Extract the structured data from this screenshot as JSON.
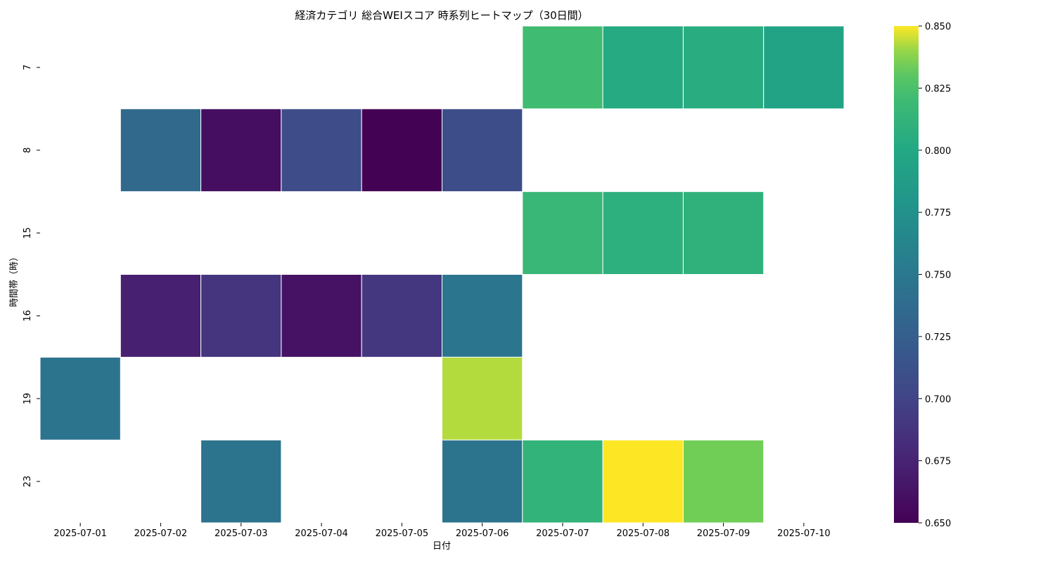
{
  "chart_data": {
    "type": "heatmap",
    "title": "経済カテゴリ 総合WEIスコア 時系列ヒートマップ（30日間）",
    "xlabel": "日付",
    "ylabel": "時間帯（時）",
    "x": [
      "2025-07-01",
      "2025-07-02",
      "2025-07-03",
      "2025-07-04",
      "2025-07-05",
      "2025-07-06",
      "2025-07-07",
      "2025-07-08",
      "2025-07-09",
      "2025-07-10"
    ],
    "y": [
      "7",
      "8",
      "15",
      "16",
      "19",
      "23"
    ],
    "values": [
      [
        null,
        null,
        null,
        null,
        null,
        null,
        0.822,
        0.802,
        0.805,
        0.795
      ],
      [
        null,
        0.735,
        0.659,
        0.707,
        0.651,
        0.708,
        null,
        null,
        null,
        null
      ],
      [
        null,
        null,
        null,
        null,
        null,
        null,
        0.816,
        0.808,
        0.81,
        null
      ],
      [
        null,
        0.672,
        0.688,
        0.662,
        0.69,
        0.747,
        null,
        null,
        null,
        null
      ],
      [
        0.745,
        null,
        null,
        null,
        null,
        0.843,
        null,
        null,
        null,
        null
      ],
      [
        null,
        null,
        0.745,
        null,
        null,
        0.746,
        0.812,
        0.85,
        0.835,
        null
      ]
    ],
    "colorbar": {
      "colormap": "viridis",
      "range": [
        0.65,
        0.85
      ],
      "ticks": [
        "0.650",
        "0.675",
        "0.700",
        "0.725",
        "0.750",
        "0.775",
        "0.800",
        "0.825",
        "0.850"
      ]
    },
    "grid": false,
    "missing_cell_color": "#ffffff",
    "cell_border_color": "#ffffff"
  }
}
